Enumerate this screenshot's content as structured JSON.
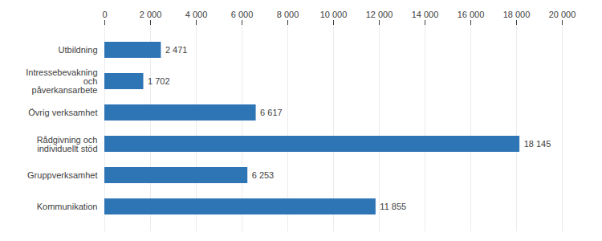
{
  "chart_data": {
    "type": "bar",
    "orientation": "horizontal",
    "categories": [
      "Kommunikation",
      "Gruppverksamhet",
      "Rådgivning och\nindividuellt stöd",
      "Övrig verksamhet",
      "Intressebevakning\noch\npåverkansarbete",
      "Utbildning"
    ],
    "values": [
      11855,
      6253,
      18145,
      6617,
      1702,
      2471
    ],
    "value_labels": [
      "11 855",
      "6 253",
      "18 145",
      "6 617",
      "1 702",
      "2 471"
    ],
    "data_labels": true,
    "color": "#2E75B6",
    "xlim": [
      0,
      20000
    ],
    "xticks": [
      0,
      {
        "value": 2000,
        "label": "2 000"
      },
      {
        "value": 4000,
        "label": "4 000"
      },
      {
        "value": 6000,
        "label": "6 000"
      },
      {
        "value": 8000,
        "label": "8 000"
      },
      {
        "value": 10000,
        "label": "10 000"
      },
      {
        "value": 12000,
        "label": "12 000"
      },
      {
        "value": 14000,
        "label": "14 000"
      },
      {
        "value": 16000,
        "label": "16 000"
      },
      {
        "value": 18000,
        "label": "18 000"
      },
      {
        "value": 20000,
        "label": "20 000"
      }
    ],
    "grid": true
  }
}
